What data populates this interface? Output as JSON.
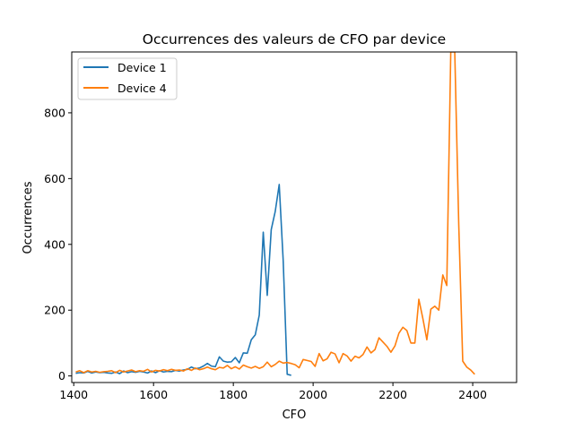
{
  "chart_data": {
    "type": "line",
    "title": "Occurrences des valeurs de CFO par device",
    "xlabel": "CFO",
    "ylabel": "Occurrences",
    "xlim": [
      1395,
      2510
    ],
    "ylim": [
      -20,
      985
    ],
    "xticks": [
      1400,
      1600,
      1800,
      2000,
      2200,
      2400
    ],
    "yticks": [
      0,
      200,
      400,
      600,
      800
    ],
    "grid": false,
    "legend": "top-left",
    "series": [
      {
        "name": "Device 1",
        "color": "#1f77b4",
        "points": [
          [
            1405,
            8
          ],
          [
            1415,
            10
          ],
          [
            1425,
            9
          ],
          [
            1435,
            14
          ],
          [
            1445,
            9
          ],
          [
            1455,
            12
          ],
          [
            1465,
            10
          ],
          [
            1475,
            11
          ],
          [
            1485,
            9
          ],
          [
            1495,
            8
          ],
          [
            1505,
            12
          ],
          [
            1515,
            7
          ],
          [
            1525,
            15
          ],
          [
            1535,
            10
          ],
          [
            1545,
            13
          ],
          [
            1555,
            11
          ],
          [
            1565,
            14
          ],
          [
            1575,
            12
          ],
          [
            1585,
            9
          ],
          [
            1595,
            15
          ],
          [
            1605,
            10
          ],
          [
            1615,
            16
          ],
          [
            1625,
            12
          ],
          [
            1635,
            14
          ],
          [
            1645,
            13
          ],
          [
            1655,
            17
          ],
          [
            1665,
            15
          ],
          [
            1675,
            18
          ],
          [
            1685,
            20
          ],
          [
            1695,
            27
          ],
          [
            1705,
            22
          ],
          [
            1715,
            24
          ],
          [
            1725,
            30
          ],
          [
            1735,
            38
          ],
          [
            1745,
            30
          ],
          [
            1755,
            28
          ],
          [
            1765,
            58
          ],
          [
            1775,
            45
          ],
          [
            1785,
            42
          ],
          [
            1795,
            43
          ],
          [
            1805,
            56
          ],
          [
            1815,
            40
          ],
          [
            1825,
            70
          ],
          [
            1835,
            69
          ],
          [
            1845,
            110
          ],
          [
            1855,
            125
          ],
          [
            1865,
            185
          ],
          [
            1875,
            437
          ],
          [
            1885,
            245
          ],
          [
            1895,
            445
          ],
          [
            1905,
            500
          ],
          [
            1915,
            582
          ],
          [
            1925,
            350
          ],
          [
            1935,
            5
          ],
          [
            1945,
            2
          ]
        ]
      },
      {
        "name": "Device 4",
        "color": "#ff7f0e",
        "points": [
          [
            1405,
            12
          ],
          [
            1415,
            16
          ],
          [
            1425,
            10
          ],
          [
            1435,
            16
          ],
          [
            1445,
            12
          ],
          [
            1455,
            14
          ],
          [
            1465,
            11
          ],
          [
            1475,
            13
          ],
          [
            1485,
            14
          ],
          [
            1495,
            16
          ],
          [
            1505,
            10
          ],
          [
            1515,
            17
          ],
          [
            1525,
            12
          ],
          [
            1535,
            15
          ],
          [
            1545,
            18
          ],
          [
            1555,
            13
          ],
          [
            1565,
            16
          ],
          [
            1575,
            14
          ],
          [
            1585,
            20
          ],
          [
            1595,
            12
          ],
          [
            1605,
            17
          ],
          [
            1615,
            15
          ],
          [
            1625,
            19
          ],
          [
            1635,
            16
          ],
          [
            1645,
            20
          ],
          [
            1655,
            17
          ],
          [
            1665,
            18
          ],
          [
            1675,
            15
          ],
          [
            1685,
            22
          ],
          [
            1695,
            17
          ],
          [
            1705,
            24
          ],
          [
            1715,
            19
          ],
          [
            1725,
            22
          ],
          [
            1735,
            27
          ],
          [
            1745,
            22
          ],
          [
            1755,
            19
          ],
          [
            1765,
            26
          ],
          [
            1775,
            24
          ],
          [
            1785,
            32
          ],
          [
            1795,
            22
          ],
          [
            1805,
            28
          ],
          [
            1815,
            21
          ],
          [
            1825,
            33
          ],
          [
            1835,
            28
          ],
          [
            1845,
            24
          ],
          [
            1855,
            29
          ],
          [
            1865,
            23
          ],
          [
            1875,
            28
          ],
          [
            1885,
            42
          ],
          [
            1895,
            28
          ],
          [
            1905,
            35
          ],
          [
            1915,
            45
          ],
          [
            1925,
            39
          ],
          [
            1935,
            41
          ],
          [
            1945,
            38
          ],
          [
            1955,
            34
          ],
          [
            1965,
            25
          ],
          [
            1975,
            50
          ],
          [
            1985,
            47
          ],
          [
            1995,
            44
          ],
          [
            2005,
            29
          ],
          [
            2015,
            68
          ],
          [
            2025,
            46
          ],
          [
            2035,
            52
          ],
          [
            2045,
            72
          ],
          [
            2055,
            67
          ],
          [
            2065,
            40
          ],
          [
            2075,
            68
          ],
          [
            2085,
            61
          ],
          [
            2095,
            45
          ],
          [
            2105,
            60
          ],
          [
            2115,
            55
          ],
          [
            2125,
            65
          ],
          [
            2135,
            88
          ],
          [
            2145,
            70
          ],
          [
            2155,
            80
          ],
          [
            2165,
            116
          ],
          [
            2175,
            103
          ],
          [
            2185,
            90
          ],
          [
            2195,
            72
          ],
          [
            2205,
            91
          ],
          [
            2215,
            130
          ],
          [
            2225,
            148
          ],
          [
            2235,
            138
          ],
          [
            2245,
            100
          ],
          [
            2255,
            100
          ],
          [
            2265,
            233
          ],
          [
            2275,
            175
          ],
          [
            2285,
            110
          ],
          [
            2295,
            203
          ],
          [
            2305,
            212
          ],
          [
            2315,
            200
          ],
          [
            2325,
            307
          ],
          [
            2335,
            275
          ],
          [
            2345,
            985
          ],
          [
            2355,
            985
          ],
          [
            2365,
            460
          ],
          [
            2375,
            45
          ],
          [
            2385,
            27
          ],
          [
            2395,
            18
          ],
          [
            2405,
            5
          ]
        ]
      }
    ]
  }
}
